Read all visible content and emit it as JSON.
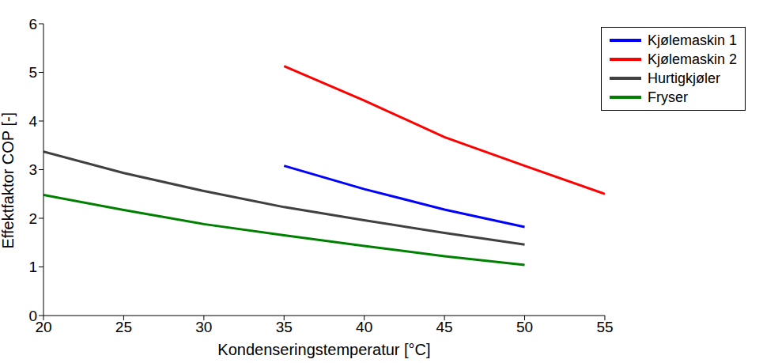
{
  "chart_data": {
    "type": "line",
    "x_label": "Kondenseringstemperatur [°C]",
    "y_label": "Effektfaktor COP [-]",
    "xlim": [
      20,
      55
    ],
    "xticks": [
      20,
      25,
      30,
      35,
      40,
      45,
      50,
      55
    ],
    "ylim": [
      0,
      6
    ],
    "yticks": [
      0,
      1,
      2,
      3,
      4,
      5,
      6
    ],
    "grid": false,
    "legend": "upper right",
    "series": [
      {
        "name": "Kjølemaskin 1",
        "color": "#0000ff",
        "x": [
          35,
          40,
          45,
          50
        ],
        "values": [
          3.08,
          2.6,
          2.18,
          1.82
        ]
      },
      {
        "name": "Kjølemaskin 2",
        "color": "#ff0000",
        "x": [
          35,
          40,
          45,
          50,
          55
        ],
        "values": [
          5.13,
          4.42,
          3.67,
          3.08,
          2.5
        ]
      },
      {
        "name": "Hurtigkjøler",
        "color": "#404040",
        "x": [
          20,
          25,
          30,
          35,
          40,
          45,
          50
        ],
        "values": [
          3.37,
          2.93,
          2.56,
          2.23,
          1.96,
          1.7,
          1.46
        ]
      },
      {
        "name": "Fryser",
        "color": "#008000",
        "x": [
          20,
          25,
          30,
          35,
          40,
          45,
          50
        ],
        "values": [
          2.48,
          2.17,
          1.88,
          1.65,
          1.43,
          1.22,
          1.04
        ]
      }
    ]
  }
}
